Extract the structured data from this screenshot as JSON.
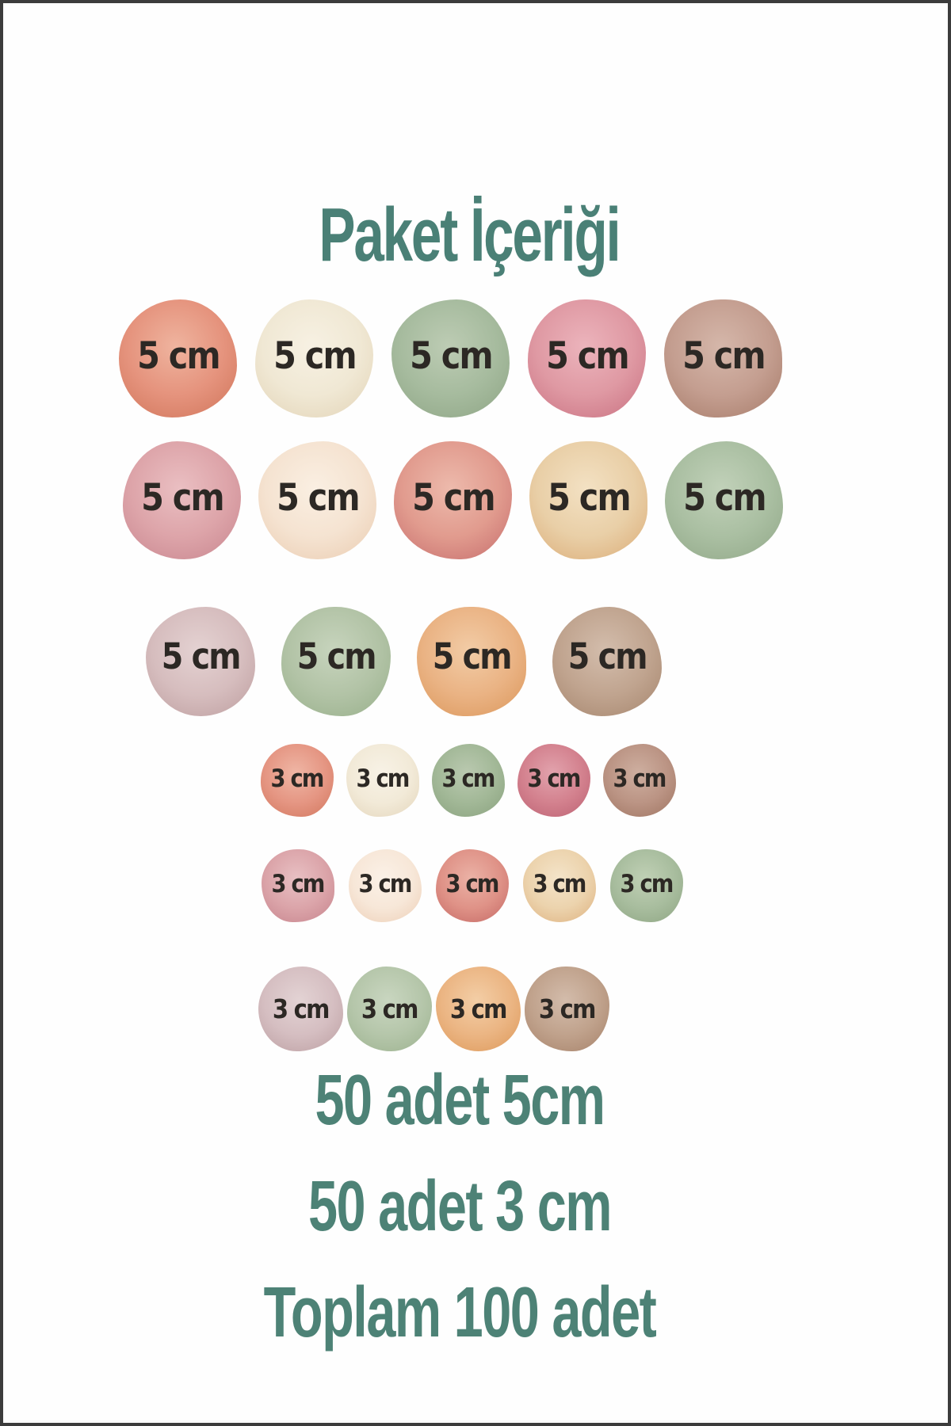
{
  "page": {
    "background_color": "#fefefe",
    "frame_border_color": "#3c3c3c"
  },
  "title": {
    "text": "Paket İçeriği",
    "color": "#4a8076"
  },
  "size_label_color": "#2c2824",
  "sticker_rows": [
    {
      "size": "5cm",
      "circles": [
        {
          "name": "salmon",
          "label": "5 cm",
          "base": "#e5937d",
          "light": "#efb49f",
          "dark": "#d0755a"
        },
        {
          "name": "cream",
          "label": "5 cm",
          "base": "#f0e8d4",
          "light": "#f7f1e3",
          "dark": "#e2d3b6"
        },
        {
          "name": "sage-green",
          "label": "5 cm",
          "base": "#a6bb9e",
          "light": "#bdccb4",
          "dark": "#8ea585"
        },
        {
          "name": "dusty-rose",
          "label": "5 cm",
          "base": "#df99a3",
          "light": "#ecb4bc",
          "dark": "#c97181"
        },
        {
          "name": "mauve-brown",
          "label": "5 cm",
          "base": "#c49e90",
          "light": "#d5b7aa",
          "dark": "#a77c6a"
        }
      ]
    },
    {
      "size": "5cm",
      "circles": [
        {
          "name": "dusty-pink",
          "label": "5 cm",
          "base": "#dda4a9",
          "light": "#eabfc2",
          "dark": "#c8868f"
        },
        {
          "name": "peach-cream",
          "label": "5 cm",
          "base": "#f5e3d1",
          "light": "#faefe2",
          "dark": "#eaccb1"
        },
        {
          "name": "coral",
          "label": "5 cm",
          "base": "#e19b8e",
          "light": "#edbaac",
          "dark": "#c66d6d"
        },
        {
          "name": "peach-tan",
          "label": "5 cm",
          "base": "#e9cfa7",
          "light": "#f3e1c3",
          "dark": "#dbac77"
        },
        {
          "name": "sage-green",
          "label": "5 cm",
          "base": "#aabfa2",
          "light": "#c1d1b9",
          "dark": "#91a888"
        }
      ]
    },
    {
      "size": "5cm",
      "circles": [
        {
          "name": "pale-mauve",
          "label": "5 cm",
          "base": "#d6bdbe",
          "light": "#e4d2d2",
          "dark": "#bd9e9f"
        },
        {
          "name": "sage-green",
          "label": "5 cm",
          "base": "#b2c3a6",
          "light": "#c7d4bd",
          "dark": "#98b08b"
        },
        {
          "name": "apricot",
          "label": "5 cm",
          "base": "#eab384",
          "light": "#f2cca6",
          "dark": "#db975b"
        },
        {
          "name": "tan",
          "label": "5 cm",
          "base": "#c0a48f",
          "light": "#d3bdac",
          "dark": "#a6866e"
        }
      ]
    },
    {
      "size": "3cm",
      "circles": [
        {
          "name": "salmon",
          "label": "3 cm",
          "base": "#e59683",
          "light": "#efb6a5",
          "dark": "#d2775e"
        },
        {
          "name": "cream",
          "label": "3 cm",
          "base": "#f2ead8",
          "light": "#f8f2e6",
          "dark": "#e4d6bc"
        },
        {
          "name": "sage-green",
          "label": "3 cm",
          "base": "#a2b897",
          "light": "#bac9b0",
          "dark": "#8aa27f"
        },
        {
          "name": "dusty-rose",
          "label": "3 cm",
          "base": "#d3818e",
          "light": "#e2a3ad",
          "dark": "#bc6273"
        },
        {
          "name": "mauve-brown",
          "label": "3 cm",
          "base": "#bb9484",
          "light": "#ceafa0",
          "dark": "#9f7562"
        }
      ]
    },
    {
      "size": "3cm",
      "circles": [
        {
          "name": "dusty-pink",
          "label": "3 cm",
          "base": "#dba4a9",
          "light": "#e8c0c3",
          "dark": "#c7858e"
        },
        {
          "name": "peach-cream",
          "label": "3 cm",
          "base": "#f7e7d8",
          "light": "#fbf1e7",
          "dark": "#edcfb7"
        },
        {
          "name": "coral",
          "label": "3 cm",
          "base": "#df9287",
          "light": "#ebb2a6",
          "dark": "#c56965"
        },
        {
          "name": "peach-tan",
          "label": "3 cm",
          "base": "#ecd3ad",
          "light": "#f4e4c9",
          "dark": "#deb280"
        },
        {
          "name": "sage-green",
          "label": "3 cm",
          "base": "#a8bd9e",
          "light": "#c0d0b5",
          "dark": "#8fa684"
        }
      ]
    },
    {
      "size": "3cm-large",
      "circles": [
        {
          "name": "pale-mauve",
          "label": "3 cm",
          "base": "#d5bec1",
          "light": "#e3d3d4",
          "dark": "#bc9fa2"
        },
        {
          "name": "sage-green",
          "label": "3 cm",
          "base": "#b5c6aa",
          "light": "#c9d6c0",
          "dark": "#9cb28f"
        },
        {
          "name": "apricot",
          "label": "3 cm",
          "base": "#ebb583",
          "light": "#f3cea6",
          "dark": "#dd995a"
        },
        {
          "name": "tan",
          "label": "3 cm",
          "base": "#c0a28c",
          "light": "#d3bcab",
          "dark": "#a7836b"
        }
      ]
    }
  ],
  "summary": {
    "color": "#4d8276",
    "line1": "50 adet 5cm",
    "line2": "50 adet 3 cm",
    "line3": "Toplam 100 adet"
  }
}
